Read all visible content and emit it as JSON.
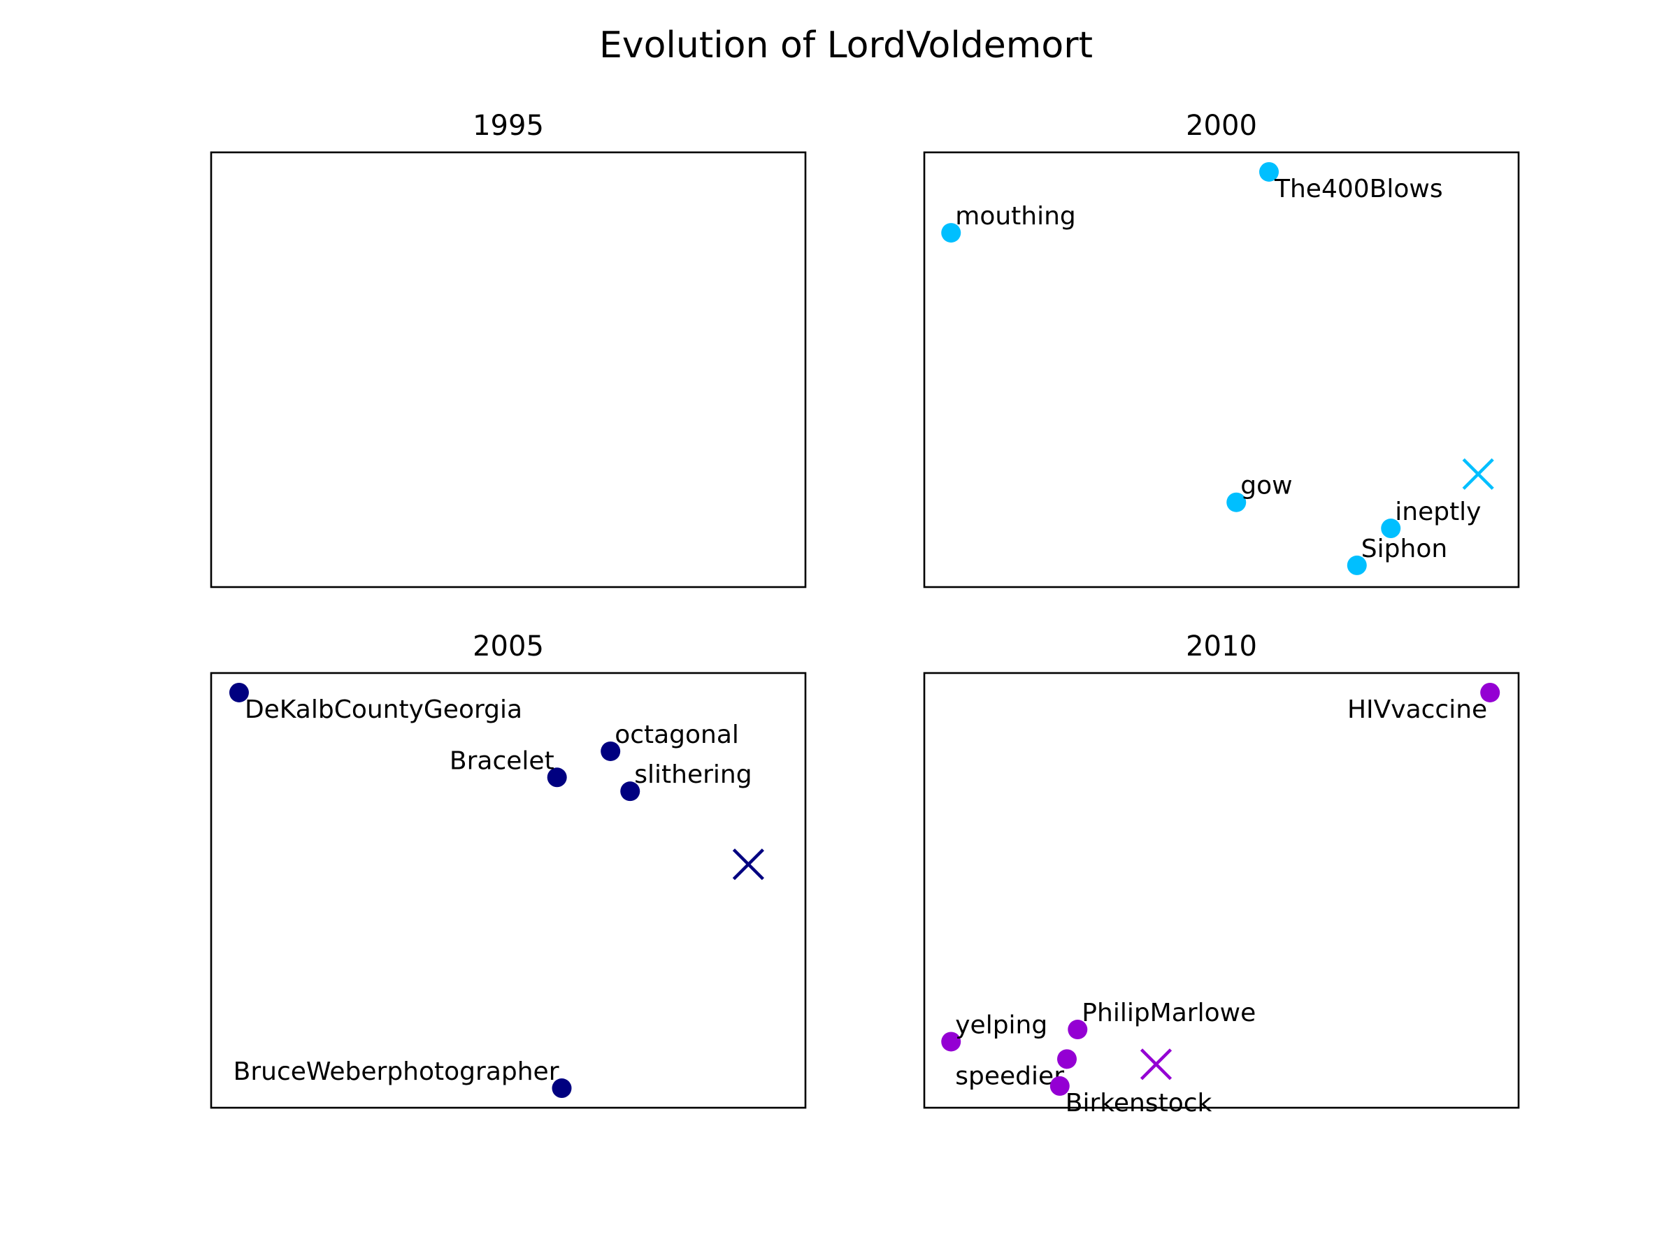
{
  "chart_data": {
    "type": "scatter",
    "title": "Evolution of LordVoldemort",
    "panels": [
      {
        "title": "1995",
        "color": "",
        "points": [],
        "centroid": null
      },
      {
        "title": "2000",
        "color": "#00bfff",
        "points": [
          {
            "label": "The400Blows",
            "x": 0.58,
            "y": 0.955,
            "label_pos": "below-right"
          },
          {
            "label": "mouthing",
            "x": 0.045,
            "y": 0.815,
            "label_pos": "above-right"
          },
          {
            "label": "gow",
            "x": 0.525,
            "y": 0.195,
            "label_pos": "above-right"
          },
          {
            "label": "ineptly",
            "x": 0.785,
            "y": 0.135,
            "label_pos": "above-right"
          },
          {
            "label": "Siphon",
            "x": 0.728,
            "y": 0.05,
            "label_pos": "above-right"
          }
        ],
        "centroid": {
          "x": 0.932,
          "y": 0.26
        }
      },
      {
        "title": "2005",
        "color": "#000080",
        "points": [
          {
            "label": "DeKalbCountyGeorgia",
            "x": 0.047,
            "y": 0.955,
            "label_pos": "below-right"
          },
          {
            "label": "octagonal",
            "x": 0.672,
            "y": 0.82,
            "label_pos": "above-right"
          },
          {
            "label": "Bracelet",
            "x": 0.582,
            "y": 0.76,
            "label_pos": "above-left"
          },
          {
            "label": "slithering",
            "x": 0.705,
            "y": 0.728,
            "label_pos": "above-right"
          },
          {
            "label": "BruceWeberphotographer",
            "x": 0.59,
            "y": 0.045,
            "label_pos": "above-left"
          }
        ],
        "centroid": {
          "x": 0.904,
          "y": 0.56
        }
      },
      {
        "title": "2010",
        "color": "#9400d3",
        "points": [
          {
            "label": "HIVvaccine",
            "x": 0.952,
            "y": 0.955,
            "label_pos": "below-left"
          },
          {
            "label": "PhilipMarlowe",
            "x": 0.258,
            "y": 0.18,
            "label_pos": "above-right"
          },
          {
            "label": "yelping",
            "x": 0.045,
            "y": 0.152,
            "label_pos": "above-right"
          },
          {
            "label": "speedier",
            "x": 0.24,
            "y": 0.112,
            "label_pos": "below-left"
          },
          {
            "label": "Birkenstock",
            "x": 0.228,
            "y": 0.05,
            "label_pos": "below-right"
          }
        ],
        "centroid": {
          "x": 0.39,
          "y": 0.1
        }
      }
    ]
  }
}
